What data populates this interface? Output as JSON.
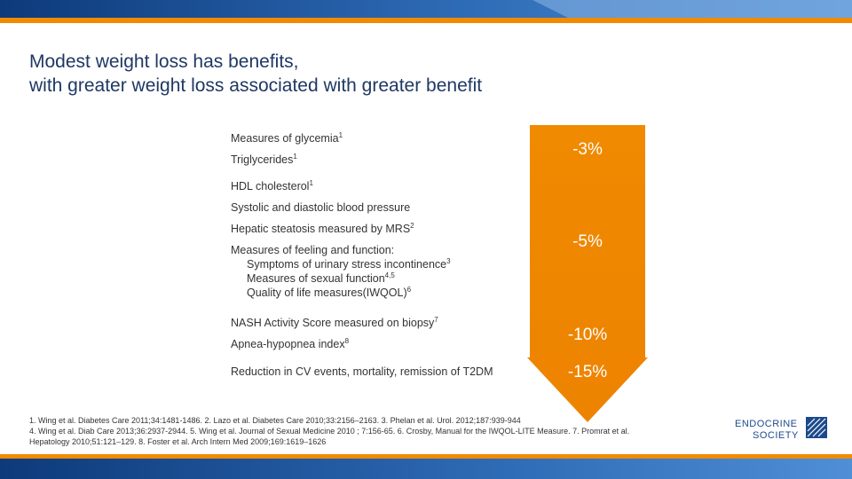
{
  "slide": {
    "title_lines": [
      "Modest weight loss has benefits,",
      "with greater weight loss associated with greater benefit"
    ]
  },
  "colors": {
    "banner_blue": "#1b4a8c",
    "accent_orange": "#f08a00",
    "title_navy": "#1f3864"
  },
  "measures": [
    {
      "text": "Measures of glycemia",
      "sup": "1"
    },
    {
      "text": "Triglycerides",
      "sup": "1"
    },
    {
      "text": "HDL cholesterol",
      "sup": "1"
    },
    {
      "text": "Systolic and diastolic blood pressure",
      "sup": ""
    },
    {
      "text": "Hepatic steatosis measured by MRS",
      "sup": "2"
    },
    {
      "text": "Measures of feeling and function:",
      "sup": "",
      "subitems": [
        {
          "text": "Symptoms of urinary stress incontinence",
          "sup": "3"
        },
        {
          "text": "Measures of sexual function",
          "sup": "4,5"
        },
        {
          "text": "Quality of life measures(IWQOL)",
          "sup": "6"
        }
      ]
    },
    {
      "text": "NASH Activity Score measured on biopsy",
      "sup": "7"
    },
    {
      "text": "Apnea-hypopnea index",
      "sup": "8"
    },
    {
      "text": "Reduction in CV events, mortality, remission of T2DM",
      "sup": ""
    }
  ],
  "weight_loss_levels": [
    "-3%",
    "-5%",
    "-10%",
    "-15%"
  ],
  "footnotes": [
    "1. Wing et al. Diabetes Care 2011;34:1481-1486. 2. Lazo et al. Diabetes Care 2010;33:2156–2163. 3. Phelan et al. Urol. 2012;187:939-944",
    "4. Wing et al. Diab Care 2013;36:2937-2944. 5. Wing et al. Journal of Sexual Medicine 2010 ; 7:156-65. 6. Crosby, Manual for the IWQOL-LITE Measure. 7. Promrat et al.",
    "Hepatology 2010;51:121–129. 8. Foster et al. Arch Intern Med 2009;169:1619–1626"
  ],
  "logo": {
    "line1": "ENDOCRINE",
    "line2": "SOCIETY"
  }
}
